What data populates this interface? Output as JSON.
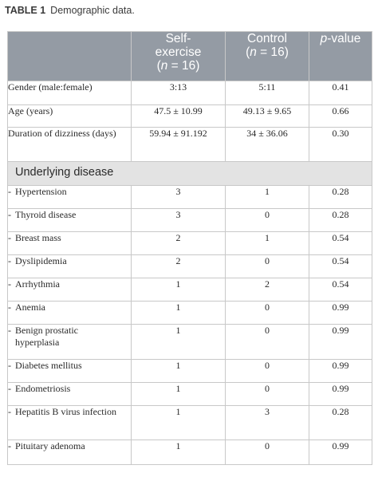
{
  "caption": {
    "label": "TABLE 1",
    "title": "Demographic data."
  },
  "header": {
    "col1": "",
    "col2_line1": "Self-",
    "col2_line2": "exercise",
    "col2_open": "(",
    "col2_n": "n",
    "col2_eq": " = 16)",
    "col3_line1": "Control",
    "col3_open": "(",
    "col3_n": "n",
    "col3_eq": " = 16)",
    "col4_p": "p",
    "col4_rest": "-value"
  },
  "rows": [
    {
      "label": "Gender (male:female)",
      "self": "3:13",
      "control": "5:11",
      "p": "0.41"
    },
    {
      "label": "Age (years)",
      "self": "47.5 ± 10.99",
      "control": "49.13 ± 9.65",
      "p": "0.66"
    },
    {
      "label": "Duration of dizziness (days)",
      "self": "59.94 ± 91.192",
      "control": "34 ± 36.06",
      "p": "0.30"
    }
  ],
  "section": {
    "title": "Underlying disease"
  },
  "diseases": [
    {
      "dash": "-",
      "label": "Hypertension",
      "self": "3",
      "control": "1",
      "p": "0.28"
    },
    {
      "dash": "-",
      "label": "Thyroid disease",
      "self": "3",
      "control": "0",
      "p": "0.28"
    },
    {
      "dash": "-",
      "label": "Breast mass",
      "self": "2",
      "control": "1",
      "p": "0.54"
    },
    {
      "dash": "-",
      "label": "Dyslipidemia",
      "self": "2",
      "control": "0",
      "p": "0.54"
    },
    {
      "dash": "-",
      "label": "Arrhythmia",
      "self": "1",
      "control": "2",
      "p": "0.54"
    },
    {
      "dash": "-",
      "label": "Anemia",
      "self": "1",
      "control": "0",
      "p": "0.99"
    },
    {
      "dash": "-",
      "label": "Benign prostatic hyperplasia",
      "self": "1",
      "control": "0",
      "p": "0.99"
    },
    {
      "dash": "-",
      "label": "Diabetes mellitus",
      "self": "1",
      "control": "0",
      "p": "0.99"
    },
    {
      "dash": "-",
      "label": "Endometriosis",
      "self": "1",
      "control": "0",
      "p": "0.99"
    },
    {
      "dash": "-",
      "label": "Hepatitis B virus infection",
      "self": "1",
      "control": "3",
      "p": "0.28"
    },
    {
      "dash": "-",
      "label": "Pituitary adenoma",
      "self": "1",
      "control": "0",
      "p": "0.99"
    }
  ]
}
